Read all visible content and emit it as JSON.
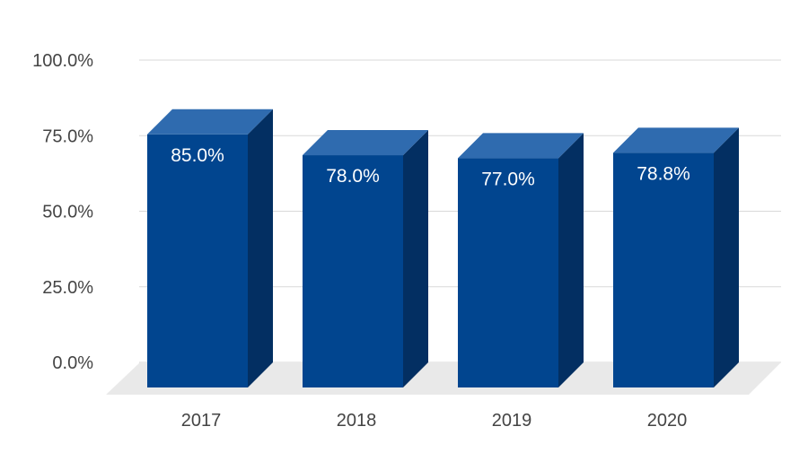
{
  "chart_data": {
    "type": "bar",
    "style": "3d",
    "categories": [
      "2017",
      "2018",
      "2019",
      "2020"
    ],
    "values": [
      85.0,
      78.0,
      77.0,
      78.8
    ],
    "value_labels": [
      "85.0%",
      "78.0%",
      "77.0%",
      "78.8%"
    ],
    "yticks": [
      0,
      25,
      50,
      75,
      100
    ],
    "ytick_labels": [
      "0.0%",
      "25.0%",
      "50.0%",
      "75.0%",
      "100.0%"
    ],
    "ylim": [
      0,
      100
    ],
    "grid": true,
    "legend": "none",
    "colors": {
      "bar_front": "#01458F",
      "bar_top": "#2F6BAF",
      "bar_side": "#032F62",
      "floor": "#E9E9E9",
      "grid": "#D9D9D9",
      "label_on_bar": "#FFFFFF",
      "axis_text": "#444444"
    }
  }
}
